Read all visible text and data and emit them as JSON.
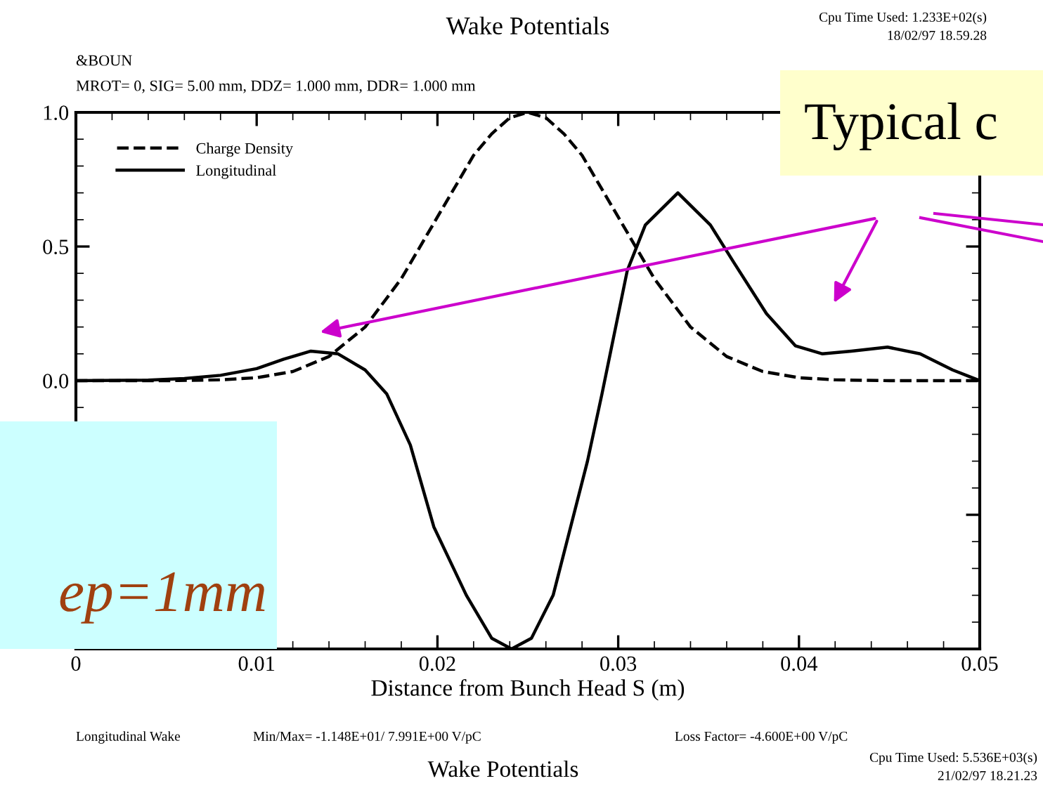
{
  "chart_data": {
    "type": "line",
    "title": "Wake Potentials",
    "subtitle": "MROT= 0, SIG= 5.00 mm, DDZ= 1.000 mm, DDR= 1.000 mm",
    "xlabel": "Distance from Bunch Head S (m)",
    "xlim": [
      0,
      0.05
    ],
    "xticks": [
      0,
      0.01,
      0.02,
      0.03,
      0.04,
      0.05
    ],
    "ylim": [
      -1,
      1
    ],
    "yticks": [
      {
        "value": -0.5,
        "label": null
      },
      {
        "value": 0,
        "label": "0.0"
      },
      {
        "value": 0.5,
        "label": "0.5"
      },
      {
        "value": 1,
        "label": "1.0"
      }
    ],
    "legend": "top left",
    "grid": false,
    "series": [
      {
        "name": "Charge Density",
        "color": "#000000",
        "line_style": "dashed",
        "x": [
          0,
          0.005,
          0.008,
          0.01,
          0.012,
          0.014,
          0.016,
          0.018,
          0.02,
          0.022,
          0.023,
          0.024,
          0.025,
          0.026,
          0.027,
          0.028,
          0.03,
          0.032,
          0.034,
          0.036,
          0.038,
          0.04,
          0.042,
          0.045,
          0.05
        ],
        "values": [
          0,
          0,
          0.003,
          0.011,
          0.034,
          0.09,
          0.2,
          0.38,
          0.61,
          0.84,
          0.92,
          0.98,
          1.0,
          0.98,
          0.92,
          0.84,
          0.61,
          0.38,
          0.2,
          0.09,
          0.034,
          0.011,
          0.003,
          0,
          0
        ]
      },
      {
        "name": "Longitudinal",
        "color": "#000000",
        "line_style": "solid",
        "x": [
          0,
          0.004,
          0.006,
          0.008,
          0.01,
          0.0115,
          0.013,
          0.0145,
          0.016,
          0.0172,
          0.0185,
          0.0198,
          0.0216,
          0.023,
          0.0241,
          0.0252,
          0.0264,
          0.0283,
          0.0291,
          0.0305,
          0.0315,
          0.0333,
          0.0351,
          0.0364,
          0.0382,
          0.0398,
          0.0413,
          0.0429,
          0.0449,
          0.0467,
          0.0485,
          0.05
        ],
        "values": [
          0,
          0.002,
          0.008,
          0.02,
          0.045,
          0.08,
          0.11,
          0.1,
          0.04,
          -0.05,
          -0.24,
          -0.545,
          -0.8,
          -0.96,
          -1.0,
          -0.96,
          -0.8,
          -0.3,
          -0.05,
          0.41,
          0.58,
          0.7,
          0.58,
          0.44,
          0.25,
          0.13,
          0.1,
          0.11,
          0.125,
          0.1,
          0.04,
          0
        ]
      }
    ],
    "annotations": [
      "&BOUN",
      "Cpu Time Used: 1.233E+02(s)",
      "18/02/97 18.59.28",
      "Longitudinal Wake",
      "Min/Max= -1.148E+01/ 7.991E+00 V/pC",
      "Loss Factor= -4.600E+00 V/pC",
      "Wake Potentials",
      "Cpu Time Used: 5.536E+03(s)",
      "21/02/97 18.21.23",
      "Typical c",
      "ep=1mm"
    ]
  }
}
